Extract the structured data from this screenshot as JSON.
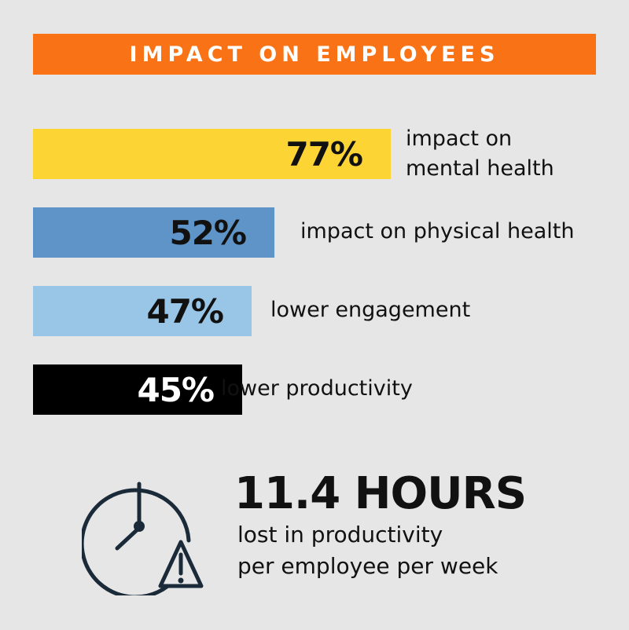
{
  "header": {
    "title": "IMPACT ON EMPLOYEES"
  },
  "chart_data": {
    "type": "bar",
    "orientation": "horizontal",
    "categories": [
      "impact on mental health",
      "impact on physical health",
      "lower engagement",
      "lower productivity"
    ],
    "values": [
      77,
      52,
      47,
      45
    ],
    "value_labels": [
      "77%",
      "52%",
      "47%",
      "45%"
    ],
    "colors": [
      "#fcd535",
      "#5f94c8",
      "#99c6e6",
      "#000000"
    ],
    "label_colors": [
      "#111111",
      "#111111",
      "#111111",
      "#ffffff"
    ]
  },
  "labels": {
    "mental_line1": "impact on",
    "mental_line2": "mental health",
    "physical": "impact on physical health",
    "engagement": "lower engagement",
    "productivity": "lower productivity"
  },
  "stat": {
    "headline": "11.4 HOURS",
    "line1": "lost in productivity",
    "line2": "per employee per week",
    "icon": "clock-warning-icon"
  },
  "colors": {
    "banner": "#f97316",
    "background": "#e6e6e6",
    "icon_stroke": "#1b2a38"
  }
}
